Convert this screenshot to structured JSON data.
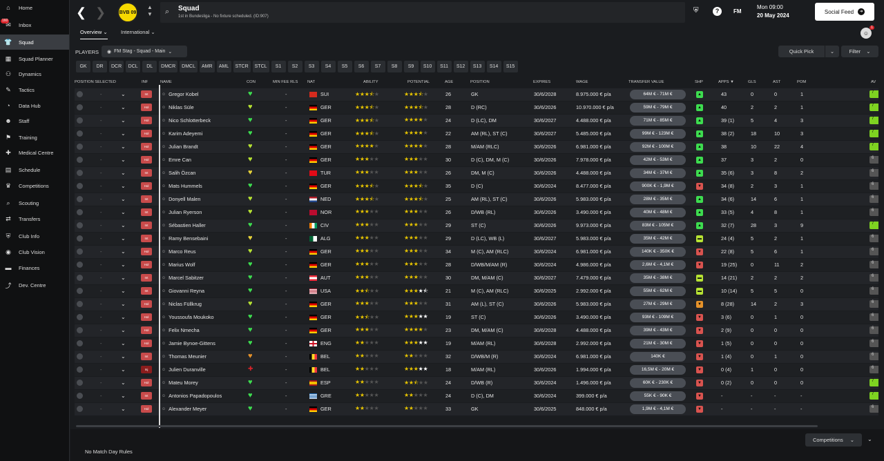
{
  "sidebar": {
    "items": [
      {
        "label": "Home",
        "icon": "home-icon",
        "glyph": "⌂"
      },
      {
        "label": "Inbox",
        "icon": "inbox-icon",
        "glyph": "✉",
        "badge": "160"
      },
      {
        "label": "Squad",
        "icon": "shirt-icon",
        "glyph": "👕",
        "active": true
      },
      {
        "label": "Squad Planner",
        "icon": "planner-icon",
        "glyph": "▦"
      },
      {
        "label": "Dynamics",
        "icon": "dynamics-icon",
        "glyph": "⚇"
      },
      {
        "label": "Tactics",
        "icon": "tactics-icon",
        "glyph": "✎"
      },
      {
        "label": "Data Hub",
        "icon": "datahub-icon",
        "glyph": "◔"
      },
      {
        "label": "Staff",
        "icon": "staff-icon",
        "glyph": "☻"
      },
      {
        "label": "Training",
        "icon": "training-icon",
        "glyph": "⚑"
      },
      {
        "label": "Medical Centre",
        "icon": "medical-icon",
        "glyph": "✚"
      },
      {
        "label": "Schedule",
        "icon": "schedule-icon",
        "glyph": "▤"
      },
      {
        "label": "Competitions",
        "icon": "trophy-icon",
        "glyph": "♛"
      },
      {
        "label": "Scouting",
        "icon": "scouting-icon",
        "glyph": "⌕"
      },
      {
        "label": "Transfers",
        "icon": "transfers-icon",
        "glyph": "⇄"
      },
      {
        "label": "Club Info",
        "icon": "club-info-icon",
        "glyph": "⛨"
      },
      {
        "label": "Club Vision",
        "icon": "club-vision-icon",
        "glyph": "◉"
      },
      {
        "label": "Finances",
        "icon": "finances-icon",
        "glyph": "▬"
      },
      {
        "label": "Dev. Centre",
        "icon": "dev-centre-icon",
        "glyph": "⤴"
      }
    ]
  },
  "header": {
    "title": "Squad",
    "subtitle": "1st in Bundesliga - No fixture scheduled. (ID:907)",
    "club_abbr": "BVB 09",
    "date_line1": "Mon 09:00",
    "date_line2": "20 May 2024",
    "social_label": "Social Feed",
    "fm_label": "FM"
  },
  "tabs": {
    "overview": "Overview",
    "international": "International"
  },
  "players_label": "PLAYERS",
  "view_select": "FM Stag - Squad - Main",
  "quick_pick": "Quick Pick",
  "filter": "Filter",
  "notif_count": "1",
  "position_buttons": [
    "GK",
    "DR",
    "DCR",
    "DCL",
    "DL",
    "DMCR",
    "DMCL",
    "AMR",
    "AML",
    "STCR",
    "STCL",
    "S1",
    "S2",
    "S3",
    "S4",
    "S5",
    "S6",
    "S7",
    "S8",
    "S9",
    "S10",
    "S11",
    "S12",
    "S13",
    "S14",
    "S15"
  ],
  "columns": {
    "position_selected": "POSITION SELECTED",
    "inf": "INF",
    "name": "NAME",
    "con": "CON",
    "min_fee": "MIN FEE RLS",
    "nat": "NAT",
    "ability": "ABILITY",
    "potential": "POTENTIAL",
    "age": "AGE",
    "position": "POSITION",
    "expires": "EXPIRES",
    "wage": "WAGE",
    "transfer_value": "TRANSFER VALUE",
    "shp": "SHP",
    "apps": "APPS",
    "gls": "GLS",
    "ast": "AST",
    "pom": "POM",
    "av": "AV"
  },
  "players": [
    {
      "inf": "Int",
      "name": "Gregor Kobel",
      "con": "green",
      "fee": "-",
      "nat": "SUI",
      "abil": 3.5,
      "pot": 3.5,
      "age": "26",
      "pos": "GK",
      "exp": "30/6/2028",
      "wage": "8.975.000 € p/a",
      "tv": "64M € - 71M €",
      "shp": "up",
      "apps": "43",
      "gls": "0",
      "ast": "0",
      "pom": "1",
      "av": "7"
    },
    {
      "inf": "Hol",
      "name": "Niklas Süle",
      "con": "lime",
      "fee": "-",
      "nat": "GER",
      "abil": 3.5,
      "pot": 3.5,
      "age": "28",
      "pos": "D (RC)",
      "exp": "30/6/2026",
      "wage": "10.970.000 € p/a",
      "tv": "59M € - 79M €",
      "shp": "up",
      "apps": "40",
      "gls": "2",
      "ast": "2",
      "pom": "1",
      "av": "7"
    },
    {
      "inf": "Hol",
      "name": "Nico Schlotterbeck",
      "con": "green",
      "fee": "-",
      "nat": "GER",
      "abil": 3.5,
      "pot": 4,
      "age": "24",
      "pos": "D (LC), DM",
      "exp": "30/6/2027",
      "wage": "4.488.000 € p/a",
      "tv": "71M € - 85M €",
      "shp": "up",
      "apps": "39 (1)",
      "gls": "5",
      "ast": "4",
      "pom": "3",
      "av": "7"
    },
    {
      "inf": "Hol",
      "name": "Karim Adeyemi",
      "con": "green",
      "fee": "-",
      "nat": "GER",
      "abil": 3.5,
      "pot": 4,
      "age": "22",
      "pos": "AM (RL), ST (C)",
      "exp": "30/6/2027",
      "wage": "5.485.000 € p/a",
      "tv": "99M € - 123M €",
      "shp": "up",
      "apps": "38 (2)",
      "gls": "18",
      "ast": "10",
      "pom": "3",
      "av": "7"
    },
    {
      "inf": "Hol",
      "name": "Julian Brandt",
      "con": "lime",
      "fee": "-",
      "nat": "GER",
      "abil": 4,
      "pot": 4,
      "age": "28",
      "pos": "M/AM (RLC)",
      "exp": "30/6/2026",
      "wage": "6.981.000 € p/a",
      "tv": "92M € - 100M €",
      "shp": "up",
      "apps": "38",
      "gls": "10",
      "ast": "22",
      "pom": "4",
      "av": "7"
    },
    {
      "inf": "Hol",
      "name": "Emre Can",
      "con": "lime",
      "fee": "-",
      "nat": "GER",
      "abil": 3,
      "pot": 3,
      "age": "30",
      "pos": "D (C), DM, M (C)",
      "exp": "30/6/2026",
      "wage": "7.978.000 € p/a",
      "tv": "42M € - 53M €",
      "shp": "up",
      "apps": "37",
      "gls": "3",
      "ast": "2",
      "pom": "0",
      "av": "6"
    },
    {
      "inf": "Int",
      "name": "Salih Özcan",
      "con": "yellow",
      "fee": "-",
      "nat": "TUR",
      "abil": 3,
      "pot": 3,
      "age": "26",
      "pos": "DM, M (C)",
      "exp": "30/6/2026",
      "wage": "4.488.000 € p/a",
      "tv": "34M € - 37M €",
      "shp": "up",
      "apps": "35 (6)",
      "gls": "3",
      "ast": "8",
      "pom": "2",
      "av": "6"
    },
    {
      "inf": "Hol",
      "name": "Mats Hummels",
      "con": "green",
      "fee": "-",
      "nat": "GER",
      "abil": 3.5,
      "pot": 3.5,
      "age": "35",
      "pos": "D (C)",
      "exp": "30/6/2024",
      "wage": "8.477.000 € p/a",
      "tv": "900K € - 1,9M €",
      "shp": "down",
      "apps": "34 (8)",
      "gls": "2",
      "ast": "3",
      "pom": "1",
      "av": "6"
    },
    {
      "inf": "Int",
      "name": "Donyell Malen",
      "con": "lime",
      "fee": "-",
      "nat": "NED",
      "abil": 3.5,
      "pot": 3.5,
      "age": "25",
      "pos": "AM (RL), ST (C)",
      "exp": "30/6/2026",
      "wage": "5.983.000 € p/a",
      "tv": "28M € - 35M €",
      "shp": "up",
      "apps": "34 (6)",
      "gls": "14",
      "ast": "6",
      "pom": "1",
      "av": "6"
    },
    {
      "inf": "Int",
      "name": "Julian Ryerson",
      "con": "lime",
      "fee": "-",
      "nat": "NOR",
      "abil": 3,
      "pot": 3,
      "age": "26",
      "pos": "D/WB (RL)",
      "exp": "30/6/2026",
      "wage": "3.490.000 € p/a",
      "tv": "40M € - 48M €",
      "shp": "up",
      "apps": "33 (5)",
      "gls": "4",
      "ast": "8",
      "pom": "1",
      "av": "6"
    },
    {
      "inf": "Int",
      "name": "Sébastien Haller",
      "con": "green",
      "fee": "-",
      "nat": "CIV",
      "abil": 3,
      "pot": 3,
      "age": "29",
      "pos": "ST (C)",
      "exp": "30/6/2026",
      "wage": "9.973.000 € p/a",
      "tv": "83M € - 105M €",
      "shp": "up",
      "apps": "32 (7)",
      "gls": "28",
      "ast": "3",
      "pom": "9",
      "av": "7"
    },
    {
      "inf": "Int",
      "name": "Ramy Bensebaini",
      "con": "yellow",
      "fee": "-",
      "nat": "ALG",
      "abil": 3,
      "pot": 3,
      "age": "29",
      "pos": "D (LC), WB (L)",
      "exp": "30/6/2027",
      "wage": "5.983.000 € p/a",
      "tv": "35M € - 42M €",
      "shp": "neutral",
      "apps": "24 (4)",
      "gls": "5",
      "ast": "2",
      "pom": "1",
      "av": "6"
    },
    {
      "inf": "Hol",
      "name": "Marco Reus",
      "con": "lime",
      "fee": "-",
      "nat": "GER",
      "abil": 3,
      "pot": 3,
      "age": "34",
      "pos": "M (C), AM (RLC)",
      "exp": "30/6/2024",
      "wage": "6.981.000 € p/a",
      "tv": "140K € - 350K €",
      "shp": "down",
      "apps": "22 (8)",
      "gls": "5",
      "ast": "6",
      "pom": "1",
      "av": "6"
    },
    {
      "inf": "Hol",
      "name": "Marius Wolf",
      "con": "green",
      "fee": "-",
      "nat": "GER",
      "abil": 3,
      "pot": 3,
      "age": "28",
      "pos": "D/WB/M/AM (R)",
      "exp": "30/6/2024",
      "wage": "4.986.000 € p/a",
      "tv": "2,6M € - 4,1M €",
      "shp": "down",
      "apps": "19 (25)",
      "gls": "0",
      "ast": "11",
      "pom": "2",
      "av": "6"
    },
    {
      "inf": "Int",
      "name": "Marcel Sabitzer",
      "con": "green",
      "fee": "-",
      "nat": "AUT",
      "abil": 3,
      "pot": 3,
      "age": "30",
      "pos": "DM, M/AM (C)",
      "exp": "30/6/2027",
      "wage": "7.479.000 € p/a",
      "tv": "35M € - 38M €",
      "shp": "neutral",
      "apps": "14 (21)",
      "gls": "2",
      "ast": "2",
      "pom": "2",
      "av": "6"
    },
    {
      "inf": "Int",
      "name": "Giovanni Reyna",
      "con": "green",
      "fee": "-",
      "nat": "USA",
      "abil": 2.5,
      "pot": 4.5,
      "age": "21",
      "pos": "M (C), AM (RLC)",
      "exp": "30/6/2025",
      "wage": "2.992.000 € p/a",
      "tv": "55M € - 62M €",
      "shp": "neutral",
      "apps": "10 (14)",
      "gls": "5",
      "ast": "5",
      "pom": "0",
      "av": "6"
    },
    {
      "inf": "Hol",
      "name": "Niclas Füllkrug",
      "con": "lime",
      "fee": "-",
      "nat": "GER",
      "abil": 3,
      "pot": 3,
      "age": "31",
      "pos": "AM (L), ST (C)",
      "exp": "30/6/2026",
      "wage": "5.983.000 € p/a",
      "tv": "27M € - 29M €",
      "shp": "orange",
      "apps": "8 (28)",
      "gls": "14",
      "ast": "2",
      "pom": "3",
      "av": "6"
    },
    {
      "inf": "Hol",
      "name": "Youssoufa Moukoko",
      "con": "green",
      "fee": "-",
      "nat": "GER",
      "abil": 2.5,
      "pot": 5,
      "age": "19",
      "pos": "ST (C)",
      "exp": "30/6/2026",
      "wage": "3.490.000 € p/a",
      "tv": "93M € - 109M €",
      "shp": "down",
      "apps": "3 (6)",
      "gls": "0",
      "ast": "1",
      "pom": "0",
      "av": "6"
    },
    {
      "inf": "Hol",
      "name": "Felix Nmecha",
      "con": "green",
      "fee": "-",
      "nat": "GER",
      "abil": 3,
      "pot": 4,
      "age": "23",
      "pos": "DM, M/AM (C)",
      "exp": "30/6/2028",
      "wage": "4.488.000 € p/a",
      "tv": "39M € - 43M €",
      "shp": "down",
      "apps": "2 (9)",
      "gls": "0",
      "ast": "0",
      "pom": "0",
      "av": "6"
    },
    {
      "inf": "Hol",
      "name": "Jamie Bynoe-Gittens",
      "con": "green",
      "fee": "-",
      "nat": "ENG",
      "abil": 2,
      "pot": 5,
      "age": "19",
      "pos": "M/AM (RL)",
      "exp": "30/6/2028",
      "wage": "2.992.000 € p/a",
      "tv": "21M € - 30M €",
      "shp": "down",
      "apps": "1 (5)",
      "gls": "0",
      "ast": "0",
      "pom": "0",
      "av": "6"
    },
    {
      "inf": "Int",
      "name": "Thomas Meunier",
      "con": "orange",
      "fee": "-",
      "nat": "BEL",
      "abil": 2,
      "pot": 2,
      "age": "32",
      "pos": "D/WB/M (R)",
      "exp": "30/6/2024",
      "wage": "6.981.000 € p/a",
      "tv": "140K €",
      "shp": "down",
      "apps": "1 (4)",
      "gls": "0",
      "ast": "1",
      "pom": "0",
      "av": "6"
    },
    {
      "inf": "Inj",
      "name": "Julien Duranville",
      "con": "injury",
      "fee": "-",
      "nat": "BEL",
      "abil": 2,
      "pot": 5,
      "age": "18",
      "pos": "M/AM (RL)",
      "exp": "30/6/2026",
      "wage": "1.994.000 € p/a",
      "tv": "16,5M € - 20M €",
      "shp": "down",
      "apps": "0 (4)",
      "gls": "1",
      "ast": "0",
      "pom": "0",
      "av": "6"
    },
    {
      "inf": "Hol",
      "name": "Mateu Morey",
      "con": "green",
      "fee": "-",
      "nat": "ESP",
      "abil": 2,
      "pot": 2.5,
      "age": "24",
      "pos": "D/WB (R)",
      "exp": "30/6/2024",
      "wage": "1.496.000 € p/a",
      "tv": "60K € - 230K €",
      "shp": "down",
      "apps": "0 (2)",
      "gls": "0",
      "ast": "0",
      "pom": "0",
      "av": "7"
    },
    {
      "inf": "Int",
      "name": "Antonios Papadopoulos",
      "con": "green",
      "fee": "-",
      "nat": "GRE",
      "abil": 2,
      "pot": 2,
      "age": "24",
      "pos": "D (C), DM",
      "exp": "30/6/2024",
      "wage": "399.000 € p/a",
      "tv": "55K € - 90K €",
      "shp": "down",
      "apps": "-",
      "gls": "-",
      "ast": "-",
      "pom": "-",
      "av": "7"
    },
    {
      "inf": "Hol",
      "name": "Alexander Meyer",
      "con": "green",
      "fee": "-",
      "nat": "GER",
      "abil": 2,
      "pot": 2,
      "age": "33",
      "pos": "GK",
      "exp": "30/6/2025",
      "wage": "848.000 € p/a",
      "tv": "1,9M € - 4,1M €",
      "shp": "down",
      "apps": "-",
      "gls": "-",
      "ast": "-",
      "pom": "-",
      "av": "6"
    }
  ],
  "footer": {
    "no_match": "No Match Day Rules",
    "competitions": "Competitions"
  },
  "colors": {
    "green": "#3ddc4f",
    "lime": "#b6e233",
    "yellow": "#e6d23a",
    "orange": "#e6922a",
    "injury": "#d9242a",
    "inf_red": "#c84b4b"
  }
}
